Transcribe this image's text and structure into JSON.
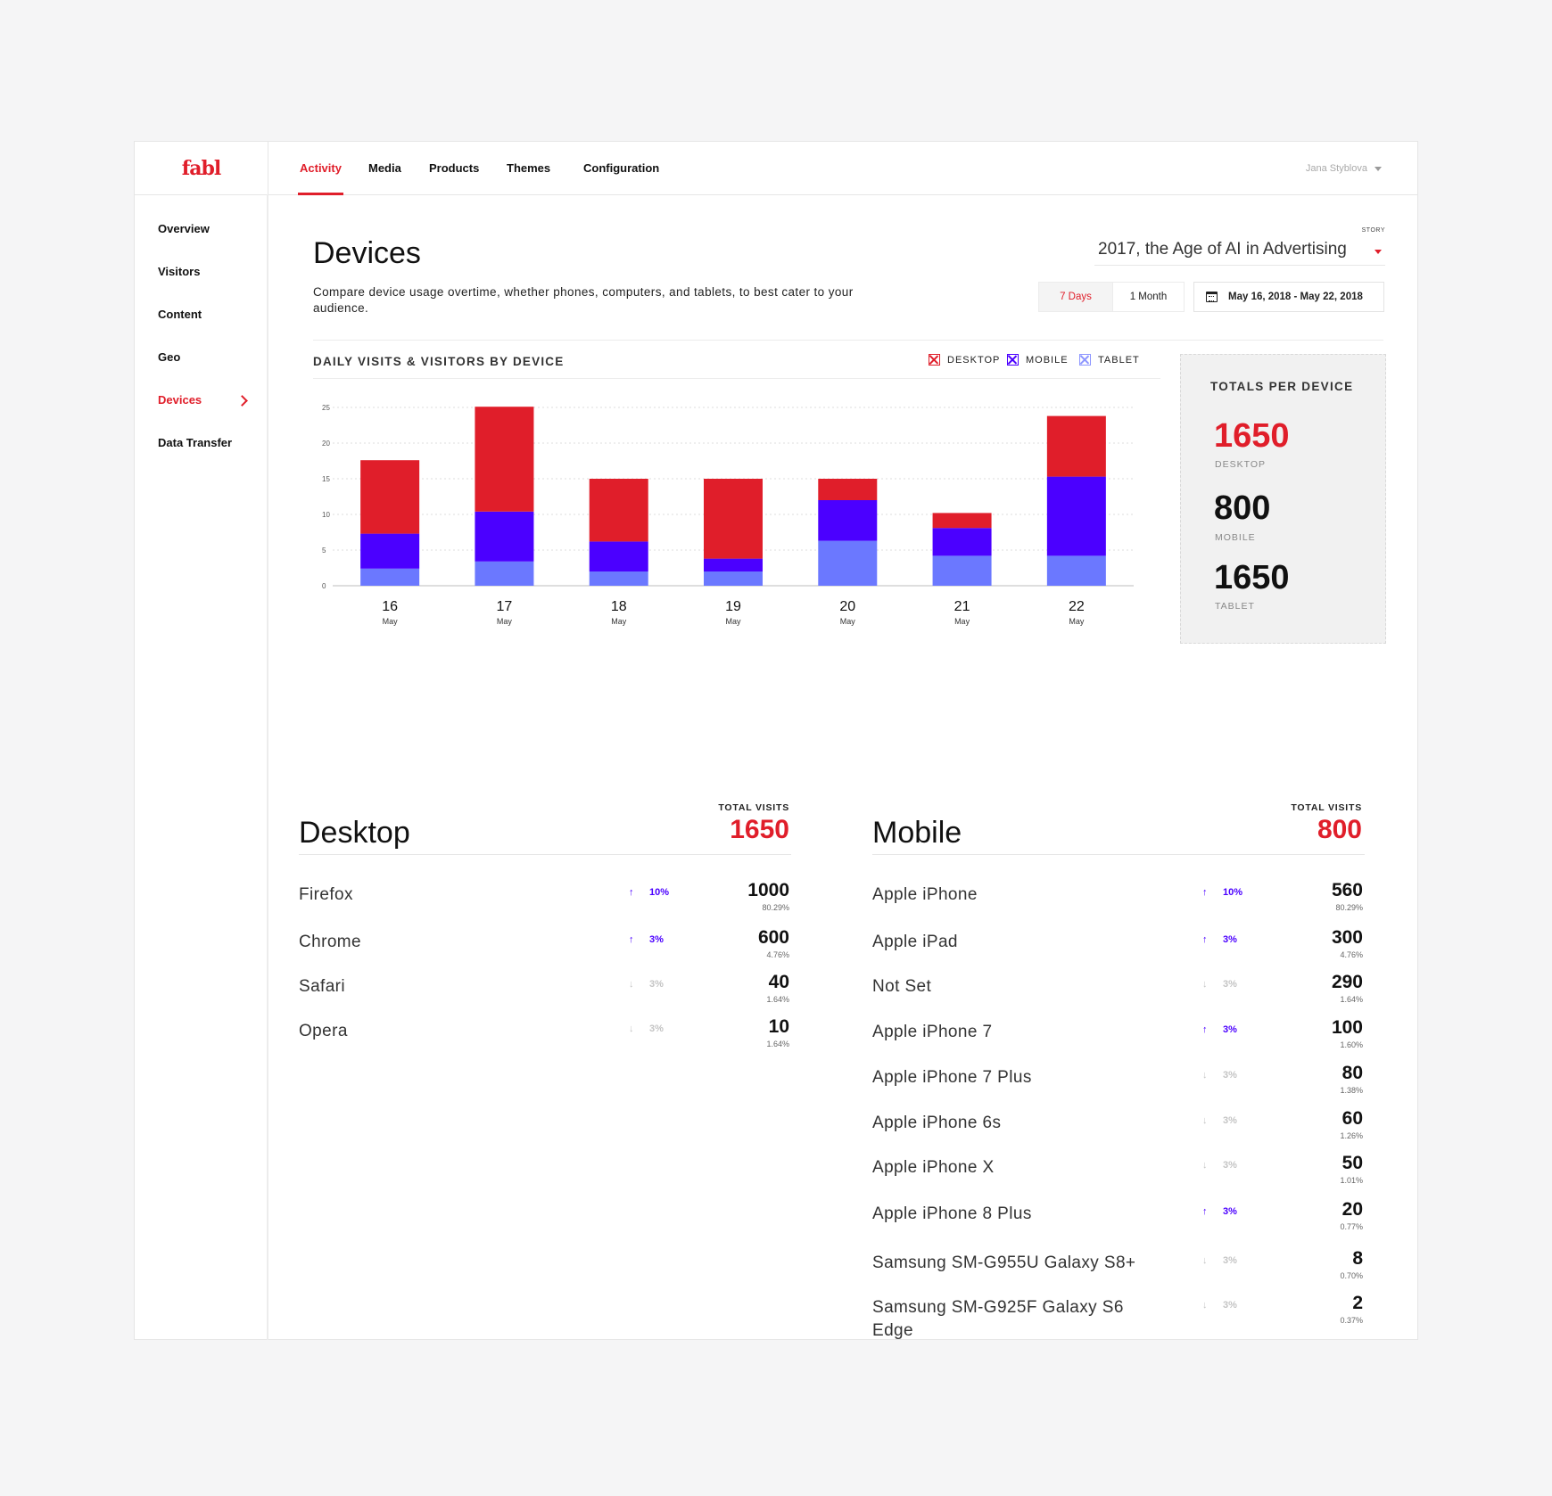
{
  "app": {
    "logo": "fabl",
    "nav_tabs": [
      "Activity",
      "Media",
      "Products",
      "Themes",
      "Configuration"
    ],
    "user_name": "Jana Styblova"
  },
  "sidebar": {
    "items": [
      "Overview",
      "Visitors",
      "Content",
      "Geo",
      "Devices",
      "Data Transfer"
    ],
    "active": "Devices"
  },
  "page": {
    "title": "Devices",
    "description": "Compare device usage overtime, whether phones, computers, and tablets, to best cater to your audience.",
    "story_label": "STORY",
    "story_value": "2017, the Age of AI in Advertising",
    "range_options": [
      "7 Days",
      "1 Month"
    ],
    "range_active": "7 Days",
    "date_range": "May 16, 2018 - May 22, 2018"
  },
  "colors": {
    "accent": "#e01e2a",
    "desktop": "#e01e2a",
    "mobile": "#4b00ff",
    "tablet": "#6b78ff"
  },
  "chart_data": {
    "type": "bar",
    "stacked": true,
    "title": "DAILY VISITS & VISITORS BY DEVICE",
    "categories": [
      "16",
      "17",
      "18",
      "19",
      "20",
      "21",
      "22"
    ],
    "category_sublabel": "May",
    "ylim": [
      0,
      25
    ],
    "yticks": [
      0,
      5,
      10,
      15,
      20,
      25
    ],
    "grid": true,
    "legend_position": "top-right",
    "series": [
      {
        "name": "TABLET",
        "values": [
          2.4,
          3.4,
          2,
          2,
          6.3,
          4.2,
          4.2
        ]
      },
      {
        "name": "MOBILE",
        "values": [
          4.9,
          7,
          4.2,
          1.8,
          5.7,
          3.9,
          11.1
        ]
      },
      {
        "name": "DESKTOP",
        "values": [
          10.3,
          14.7,
          8.8,
          11.2,
          3,
          2.1,
          8.5
        ]
      }
    ]
  },
  "legend_order": [
    "DESKTOP",
    "MOBILE",
    "TABLET"
  ],
  "totals": {
    "title": "TOTALS PER DEVICE",
    "items": [
      {
        "value": "1650",
        "label": "DESKTOP"
      },
      {
        "value": "800",
        "label": "MOBILE"
      },
      {
        "value": "1650",
        "label": "TABLET"
      }
    ]
  },
  "desktop_section": {
    "title": "Desktop",
    "total_label": "TOTAL VISITS",
    "total": "1650",
    "rows": [
      {
        "name": "Firefox",
        "trend": "up",
        "change": "10%",
        "value": "1000",
        "pct": "80.29%"
      },
      {
        "name": "Chrome",
        "trend": "up",
        "change": "3%",
        "value": "600",
        "pct": "4.76%"
      },
      {
        "name": "Safari",
        "trend": "down",
        "change": "3%",
        "value": "40",
        "pct": "1.64%"
      },
      {
        "name": "Opera",
        "trend": "down",
        "change": "3%",
        "value": "10",
        "pct": "1.64%"
      }
    ]
  },
  "mobile_section": {
    "title": "Mobile",
    "total_label": "TOTAL VISITS",
    "total": "800",
    "rows": [
      {
        "name": "Apple iPhone",
        "trend": "up",
        "change": "10%",
        "value": "560",
        "pct": "80.29%"
      },
      {
        "name": "Apple iPad",
        "trend": "up",
        "change": "3%",
        "value": "300",
        "pct": "4.76%"
      },
      {
        "name": "Not Set",
        "trend": "down",
        "change": "3%",
        "value": "290",
        "pct": "1.64%"
      },
      {
        "name": "Apple iPhone 7",
        "trend": "up",
        "change": "3%",
        "value": "100",
        "pct": "1.60%"
      },
      {
        "name": "Apple iPhone 7 Plus",
        "trend": "down",
        "change": "3%",
        "value": "80",
        "pct": "1.38%"
      },
      {
        "name": "Apple iPhone 6s",
        "trend": "down",
        "change": "3%",
        "value": "60",
        "pct": "1.26%"
      },
      {
        "name": "Apple iPhone X",
        "trend": "down",
        "change": "3%",
        "value": "50",
        "pct": "1.01%"
      },
      {
        "name": "Apple iPhone 8 Plus",
        "trend": "up",
        "change": "3%",
        "value": "20",
        "pct": "0.77%"
      },
      {
        "name": "Samsung SM-G955U Galaxy S8+",
        "trend": "down",
        "change": "3%",
        "value": "8",
        "pct": "0.70%"
      },
      {
        "name": "Samsung SM-G925F Galaxy S6 Edge",
        "trend": "down",
        "change": "3%",
        "value": "2",
        "pct": "0.37%"
      }
    ]
  }
}
